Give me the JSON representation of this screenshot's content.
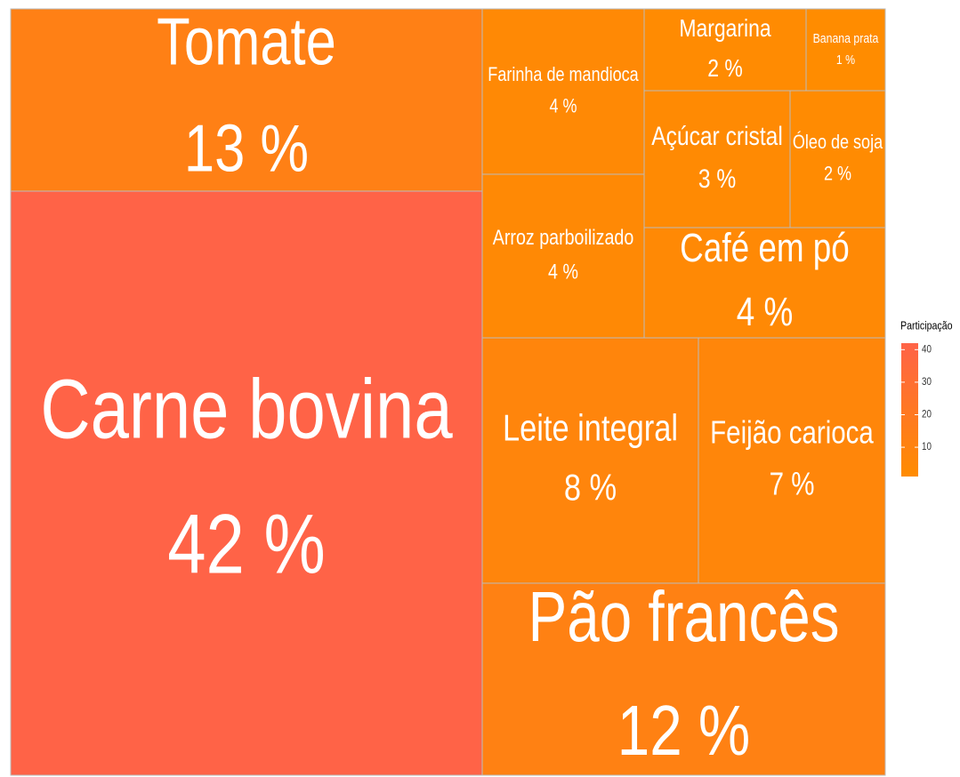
{
  "chart_data": {
    "type": "treemap",
    "categories": [
      "Carne bovina",
      "Tomate",
      "Pão francês",
      "Leite integral",
      "Feijão carioca",
      "Café em pó",
      "Arroz parboilizado",
      "Farinha de mandioca",
      "Açúcar cristal",
      "Óleo de soja",
      "Margarina",
      "Banana prata"
    ],
    "values": [
      42,
      13,
      12,
      8,
      7,
      4,
      4,
      4,
      3,
      2,
      2,
      1
    ],
    "value_labels": [
      "42 %",
      "13 %",
      "12 %",
      "8 %",
      "7 %",
      "4 %",
      "4 %",
      "4 %",
      "3 %",
      "2 %",
      "2 %",
      "1 %"
    ],
    "color_low": "#ff8c00",
    "color_high": "#ff6347",
    "legend": {
      "title": "Participação",
      "clim": [
        1,
        42
      ],
      "ticks": [
        10,
        20,
        30,
        40
      ]
    }
  }
}
